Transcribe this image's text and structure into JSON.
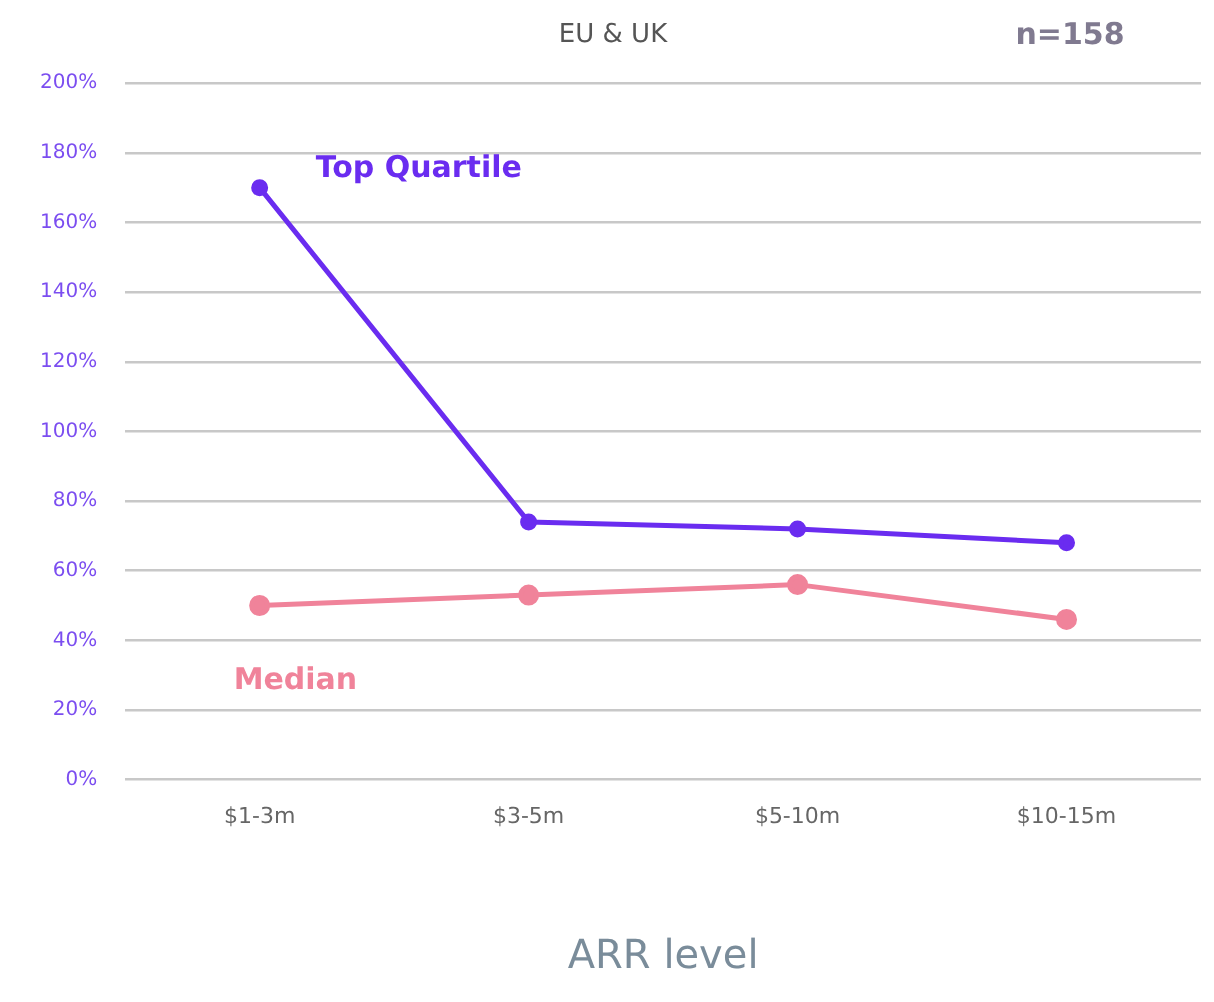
{
  "chart_data": {
    "type": "line",
    "title": "EU & UK",
    "xlabel": "ARR level",
    "annotations": [
      "n=158"
    ],
    "categories": [
      "$1-3m",
      "$3-5m",
      "$5-10m",
      "$10-15m"
    ],
    "series": [
      {
        "name": "Top Quartile",
        "color": "#6a2cf0",
        "values": [
          170,
          74,
          72,
          68
        ]
      },
      {
        "name": "Median",
        "color": "#f0839a",
        "values": [
          50,
          53,
          56,
          46
        ]
      }
    ],
    "ylim": [
      0,
      200
    ],
    "yticks": [
      {
        "value": 0,
        "label": "0%"
      },
      {
        "value": 20,
        "label": "20%"
      },
      {
        "value": 40,
        "label": "40%"
      },
      {
        "value": 60,
        "label": "60%"
      },
      {
        "value": 80,
        "label": "80%"
      },
      {
        "value": 100,
        "label": "100%"
      },
      {
        "value": 120,
        "label": "120%"
      },
      {
        "value": 140,
        "label": "140%"
      },
      {
        "value": 160,
        "label": "160%"
      },
      {
        "value": 180,
        "label": "180%"
      },
      {
        "value": 200,
        "label": "200%"
      }
    ],
    "grid": "y",
    "legend": false,
    "marker": "circle",
    "line_style": "solid"
  }
}
